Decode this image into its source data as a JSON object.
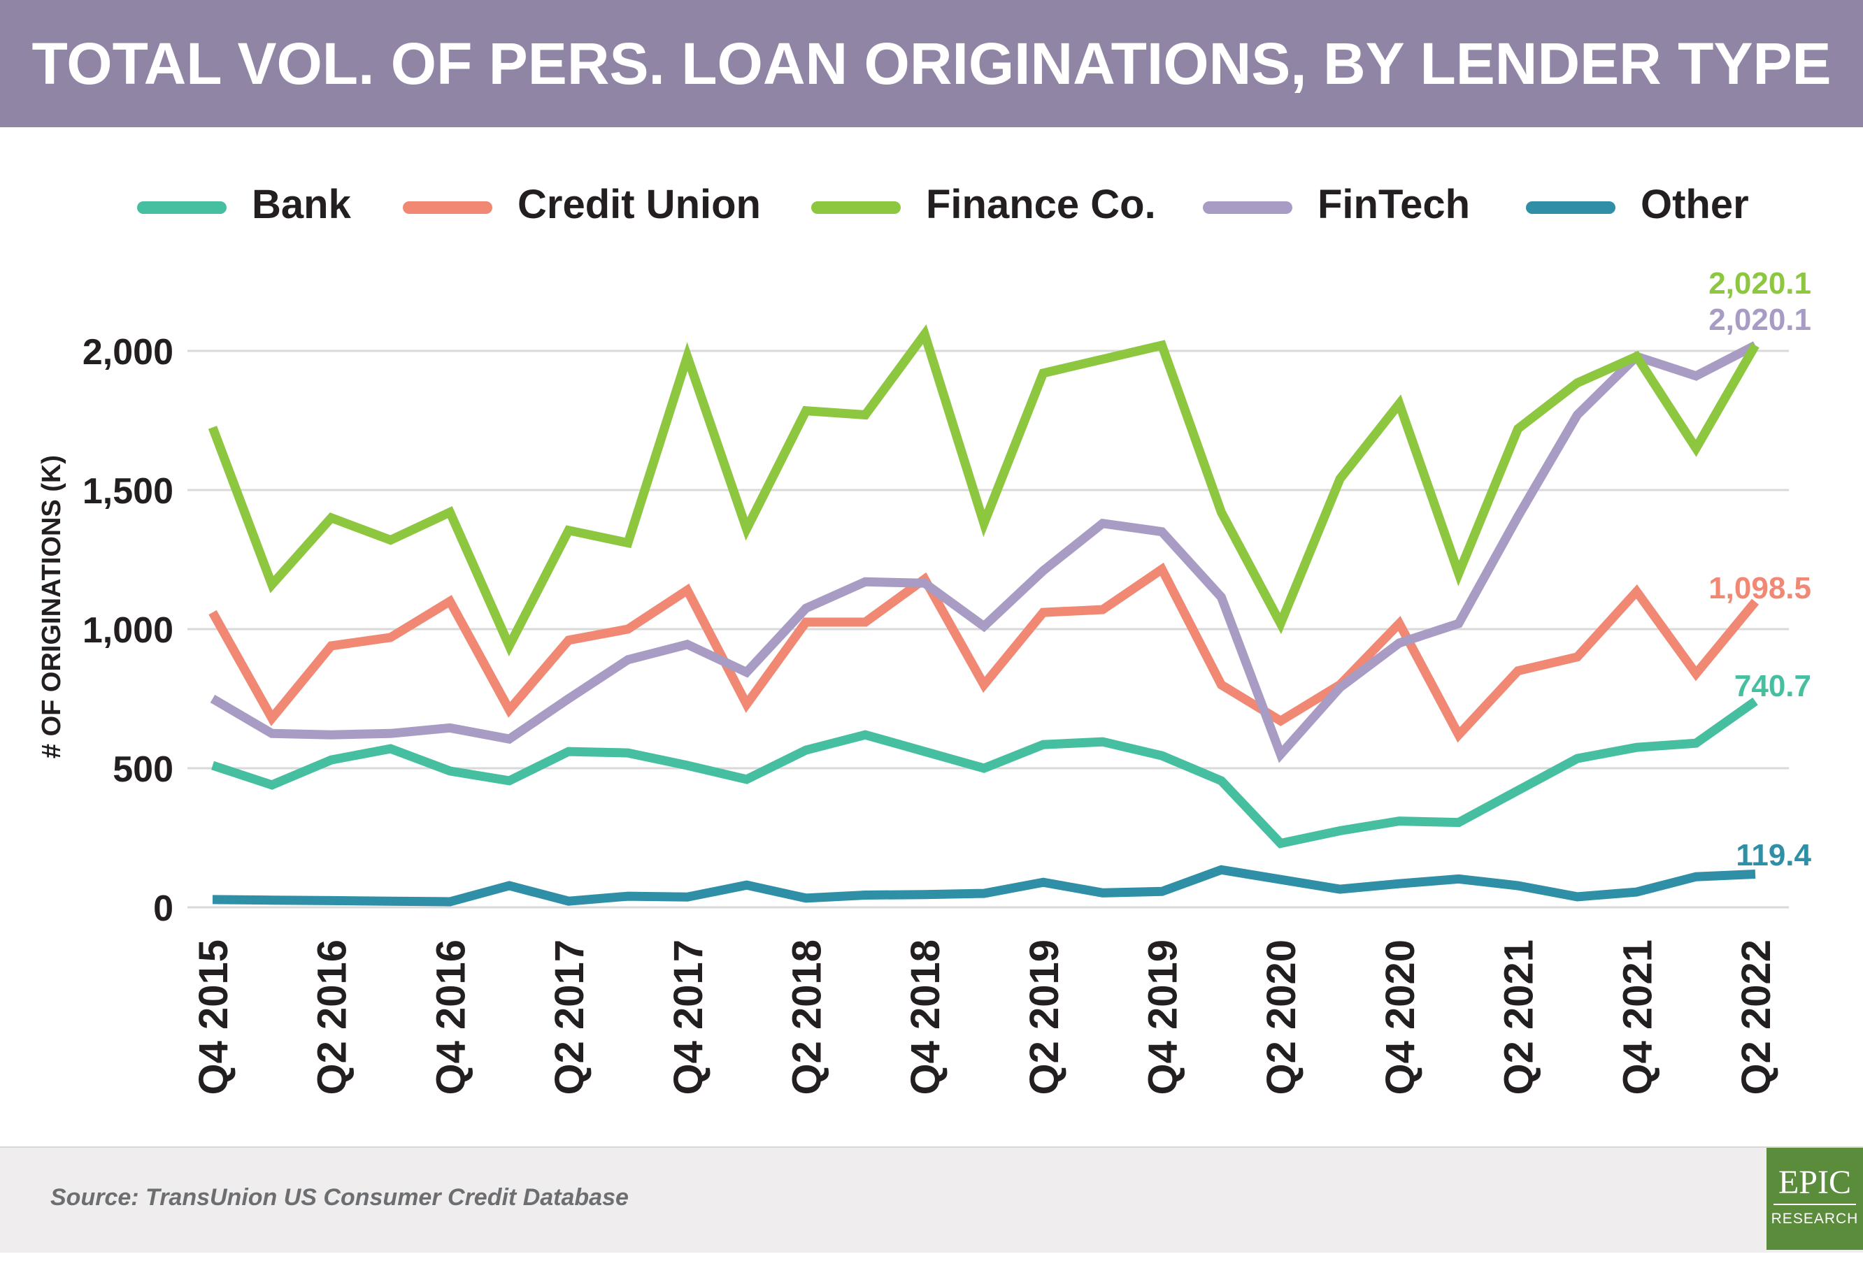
{
  "header": {
    "title": "TOTAL VOL. OF PERS. LOAN ORIGINATIONS, BY LENDER TYPE"
  },
  "footer": {
    "source": "Source: TransUnion US Consumer Credit Database",
    "logo_main": "EPIC",
    "logo_sub": "RESEARCH"
  },
  "colors": {
    "header_bg": "#9185a6",
    "bank": "#45bfa0",
    "credit_union": "#f08873",
    "finance_co": "#8dc63f",
    "fintech": "#a99cc4",
    "other": "#2e8fa6",
    "logo_bg": "#5b8c3b"
  },
  "chart_data": {
    "type": "line",
    "title": "TOTAL VOL. OF PERS. LOAN ORIGINATIONS, BY LENDER TYPE",
    "xlabel": "",
    "ylabel": "# OF ORIGINATIONS (K)",
    "ylim": [
      0,
      2000
    ],
    "yticks": [
      0,
      500,
      1000,
      1500,
      2000
    ],
    "ytick_labels": [
      "0",
      "500",
      "1,000",
      "1,500",
      "2,000"
    ],
    "grid": "horizontal",
    "legend_position": "top",
    "x": [
      "Q4 2015",
      "Q1 2016",
      "Q2 2016",
      "Q3 2016",
      "Q4 2016",
      "Q1 2017",
      "Q2 2017",
      "Q3 2017",
      "Q4 2017",
      "Q1 2018",
      "Q2 2018",
      "Q3 2018",
      "Q4 2018",
      "Q1 2019",
      "Q2 2019",
      "Q3 2019",
      "Q4 2019",
      "Q1 2020",
      "Q2 2020",
      "Q3 2020",
      "Q4 2020",
      "Q1 2021",
      "Q2 2021",
      "Q3 2021",
      "Q4 2021",
      "Q1 2022",
      "Q2 2022"
    ],
    "xtick_labels": [
      "Q4 2015",
      "Q2 2016",
      "Q4 2016",
      "Q2 2017",
      "Q4 2017",
      "Q2 2018",
      "Q4 2018",
      "Q2 2019",
      "Q4 2019",
      "Q2 2020",
      "Q4 2020",
      "Q2 2021",
      "Q4 2021",
      "Q2 2022"
    ],
    "series": [
      {
        "name": "Bank",
        "key": "bank",
        "values": [
          510,
          440,
          530,
          570,
          490,
          455,
          560,
          555,
          510,
          460,
          565,
          620,
          560,
          500,
          585,
          595,
          545,
          455,
          230,
          275,
          310,
          305,
          420,
          535,
          575,
          590,
          740.7
        ],
        "end_label": "740.7"
      },
      {
        "name": "Credit Union",
        "key": "credit_union",
        "values": [
          1060,
          680,
          940,
          970,
          1100,
          710,
          960,
          1000,
          1140,
          730,
          1025,
          1025,
          1180,
          800,
          1060,
          1070,
          1215,
          800,
          670,
          800,
          1020,
          620,
          850,
          900,
          1135,
          840,
          1098.5
        ],
        "end_label": "1,098.5"
      },
      {
        "name": "Finance Co.",
        "key": "finance_co",
        "values": [
          1725,
          1160,
          1400,
          1320,
          1420,
          940,
          1355,
          1310,
          1980,
          1360,
          1785,
          1770,
          2060,
          1380,
          1920,
          1970,
          2020,
          1420,
          1020,
          1540,
          1810,
          1200,
          1720,
          1885,
          1980,
          1650,
          2020.1
        ],
        "end_label": "2,020.1"
      },
      {
        "name": "FinTech",
        "key": "fintech",
        "values": [
          750,
          625,
          620,
          625,
          645,
          605,
          750,
          890,
          945,
          845,
          1075,
          1170,
          1165,
          1010,
          1210,
          1380,
          1350,
          1115,
          550,
          790,
          950,
          1020,
          1405,
          1770,
          1980,
          1910,
          2020.1
        ],
        "end_label": "2,020.1"
      },
      {
        "name": "Other",
        "key": "other",
        "values": [
          28,
          26,
          24,
          22,
          20,
          78,
          22,
          40,
          37,
          80,
          33,
          44,
          46,
          50,
          90,
          52,
          57,
          135,
          100,
          65,
          85,
          102,
          78,
          38,
          55,
          110,
          119.4
        ],
        "end_label": "119.4"
      }
    ]
  }
}
